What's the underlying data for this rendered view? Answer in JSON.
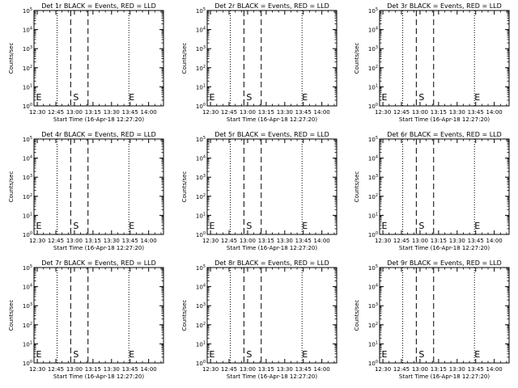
{
  "chart_data": [
    {
      "type": "line",
      "title": "Det 1r BLACK = Events, RED = LLD",
      "xlabel": "Start Time (16-Apr-18 12:27:20)",
      "ylabel": "Counts/sec",
      "xtick_labels": [
        "12:30",
        "12:45",
        "13:00",
        "13:15",
        "13:30",
        "13:45",
        "14:00"
      ],
      "xlim": [
        "12:27:20",
        "14:12:00"
      ],
      "yscale": "log",
      "ylim": [
        1,
        100000
      ],
      "ytick_labels": [
        "10^0",
        "10^1",
        "10^2",
        "10^3",
        "10^4",
        "10^5"
      ],
      "dotted_lines": [
        "12:46",
        "13:44"
      ],
      "dashed_lines": [
        "12:57",
        "13:11"
      ],
      "markers": [
        {
          "label": "E",
          "x": "12:29"
        },
        {
          "label": "S",
          "x": "12:59"
        },
        {
          "label": "E",
          "x": "13:44"
        }
      ],
      "series": []
    },
    {
      "type": "line",
      "title": "Det 2r BLACK = Events, RED = LLD",
      "xlabel": "Start Time (16-Apr-18 12:27:20)",
      "ylabel": "Counts/sec",
      "xtick_labels": [
        "12:30",
        "12:45",
        "13:00",
        "13:15",
        "13:30",
        "13:45",
        "14:00"
      ],
      "xlim": [
        "12:27:20",
        "14:12:00"
      ],
      "yscale": "log",
      "ylim": [
        1,
        100000
      ],
      "ytick_labels": [
        "10^0",
        "10^1",
        "10^2",
        "10^3",
        "10^4",
        "10^5"
      ],
      "dotted_lines": [
        "12:46",
        "13:44"
      ],
      "dashed_lines": [
        "12:57",
        "13:11"
      ],
      "markers": [
        {
          "label": "E",
          "x": "12:29"
        },
        {
          "label": "S",
          "x": "12:59"
        },
        {
          "label": "E",
          "x": "13:44"
        }
      ],
      "series": []
    },
    {
      "type": "line",
      "title": "Det 3r BLACK = Events, RED = LLD",
      "xlabel": "Start Time (16-Apr-18 12:27:20)",
      "ylabel": "Counts/sec",
      "xtick_labels": [
        "12:30",
        "12:45",
        "13:00",
        "13:15",
        "13:30",
        "13:45",
        "14:00"
      ],
      "xlim": [
        "12:27:20",
        "14:12:00"
      ],
      "yscale": "log",
      "ylim": [
        1,
        100000
      ],
      "ytick_labels": [
        "10^0",
        "10^1",
        "10^2",
        "10^3",
        "10^4",
        "10^5"
      ],
      "dotted_lines": [
        "12:46",
        "13:44"
      ],
      "dashed_lines": [
        "12:57",
        "13:11"
      ],
      "markers": [
        {
          "label": "E",
          "x": "12:29"
        },
        {
          "label": "S",
          "x": "12:59"
        },
        {
          "label": "E",
          "x": "13:44"
        }
      ],
      "series": []
    },
    {
      "type": "line",
      "title": "Det 4r BLACK = Events, RED = LLD",
      "xlabel": "Start Time (16-Apr-18 12:27:20)",
      "ylabel": "Counts/sec",
      "xtick_labels": [
        "12:30",
        "12:45",
        "13:00",
        "13:15",
        "13:30",
        "13:45",
        "14:00"
      ],
      "xlim": [
        "12:27:20",
        "14:12:00"
      ],
      "yscale": "log",
      "ylim": [
        1,
        100000
      ],
      "ytick_labels": [
        "10^0",
        "10^1",
        "10^2",
        "10^3",
        "10^4",
        "10^5"
      ],
      "dotted_lines": [
        "12:46",
        "13:44"
      ],
      "dashed_lines": [
        "12:57",
        "13:11"
      ],
      "markers": [
        {
          "label": "E",
          "x": "12:29"
        },
        {
          "label": "S",
          "x": "12:59"
        },
        {
          "label": "E",
          "x": "13:44"
        }
      ],
      "series": []
    },
    {
      "type": "line",
      "title": "Det 5r BLACK = Events, RED = LLD",
      "xlabel": "Start Time (16-Apr-18 12:27:20)",
      "ylabel": "Counts/sec",
      "xtick_labels": [
        "12:30",
        "12:45",
        "13:00",
        "13:15",
        "13:30",
        "13:45",
        "14:00"
      ],
      "xlim": [
        "12:27:20",
        "14:12:00"
      ],
      "yscale": "log",
      "ylim": [
        1,
        100000
      ],
      "ytick_labels": [
        "10^0",
        "10^1",
        "10^2",
        "10^3",
        "10^4",
        "10^5"
      ],
      "dotted_lines": [
        "12:46",
        "13:44"
      ],
      "dashed_lines": [
        "12:57",
        "13:11"
      ],
      "markers": [
        {
          "label": "E",
          "x": "12:29"
        },
        {
          "label": "S",
          "x": "12:59"
        },
        {
          "label": "E",
          "x": "13:44"
        }
      ],
      "series": []
    },
    {
      "type": "line",
      "title": "Det 6r BLACK = Events, RED = LLD",
      "xlabel": "Start Time (16-Apr-18 12:27:20)",
      "ylabel": "Counts/sec",
      "xtick_labels": [
        "12:30",
        "12:45",
        "13:00",
        "13:15",
        "13:30",
        "13:45",
        "14:00"
      ],
      "xlim": [
        "12:27:20",
        "14:12:00"
      ],
      "yscale": "log",
      "ylim": [
        1,
        100000
      ],
      "ytick_labels": [
        "10^0",
        "10^1",
        "10^2",
        "10^3",
        "10^4",
        "10^5"
      ],
      "dotted_lines": [
        "12:46",
        "13:44"
      ],
      "dashed_lines": [
        "12:57",
        "13:11"
      ],
      "markers": [
        {
          "label": "E",
          "x": "12:29"
        },
        {
          "label": "S",
          "x": "12:59"
        },
        {
          "label": "E",
          "x": "13:44"
        }
      ],
      "series": []
    },
    {
      "type": "line",
      "title": "Det 7r BLACK = Events, RED = LLD",
      "xlabel": "Start Time (16-Apr-18 12:27:20)",
      "ylabel": "Counts/sec",
      "xtick_labels": [
        "12:30",
        "12:45",
        "13:00",
        "13:15",
        "13:30",
        "13:45",
        "14:00"
      ],
      "xlim": [
        "12:27:20",
        "14:12:00"
      ],
      "yscale": "log",
      "ylim": [
        1,
        100000
      ],
      "ytick_labels": [
        "10^0",
        "10^1",
        "10^2",
        "10^3",
        "10^4",
        "10^5"
      ],
      "dotted_lines": [
        "12:46",
        "13:44"
      ],
      "dashed_lines": [
        "12:57",
        "13:11"
      ],
      "markers": [
        {
          "label": "E",
          "x": "12:29"
        },
        {
          "label": "S",
          "x": "12:59"
        },
        {
          "label": "E",
          "x": "13:44"
        }
      ],
      "series": []
    },
    {
      "type": "line",
      "title": "Det 8r BLACK = Events, RED = LLD",
      "xlabel": "Start Time (16-Apr-18 12:27:20)",
      "ylabel": "Counts/sec",
      "xtick_labels": [
        "12:30",
        "12:45",
        "13:00",
        "13:15",
        "13:30",
        "13:45",
        "14:00"
      ],
      "xlim": [
        "12:27:20",
        "14:12:00"
      ],
      "yscale": "log",
      "ylim": [
        1,
        100000
      ],
      "ytick_labels": [
        "10^0",
        "10^1",
        "10^2",
        "10^3",
        "10^4",
        "10^5"
      ],
      "dotted_lines": [
        "12:46",
        "13:44"
      ],
      "dashed_lines": [
        "12:57",
        "13:11"
      ],
      "markers": [
        {
          "label": "E",
          "x": "12:29"
        },
        {
          "label": "S",
          "x": "12:59"
        },
        {
          "label": "E",
          "x": "13:44"
        }
      ],
      "series": []
    },
    {
      "type": "line",
      "title": "Det 9r BLACK = Events, RED = LLD",
      "xlabel": "Start Time (16-Apr-18 12:27:20)",
      "ylabel": "Counts/sec",
      "xtick_labels": [
        "12:30",
        "12:45",
        "13:00",
        "13:15",
        "13:30",
        "13:45",
        "14:00"
      ],
      "xlim": [
        "12:27:20",
        "14:12:00"
      ],
      "yscale": "log",
      "ylim": [
        1,
        100000
      ],
      "ytick_labels": [
        "10^0",
        "10^1",
        "10^2",
        "10^3",
        "10^4",
        "10^5"
      ],
      "dotted_lines": [
        "12:46",
        "13:44"
      ],
      "dashed_lines": [
        "12:57",
        "13:11"
      ],
      "markers": [
        {
          "label": "E",
          "x": "12:29"
        },
        {
          "label": "S",
          "x": "12:59"
        },
        {
          "label": "E",
          "x": "13:44"
        }
      ],
      "series": []
    }
  ],
  "colors": {
    "events": "#000000",
    "lld": "#ff0000",
    "axes": "#000000",
    "background": "#ffffff"
  }
}
